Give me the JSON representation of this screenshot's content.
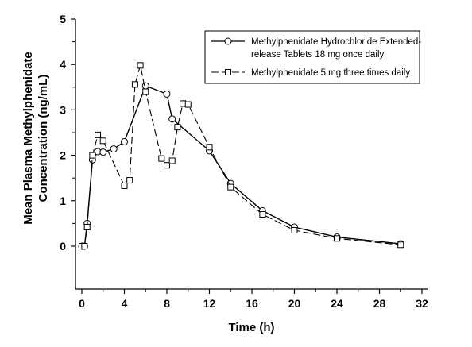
{
  "chart_data": {
    "type": "line",
    "xlabel": "Time (h)",
    "ylabel_lines": [
      "Mean Plasma Methylphenidate",
      "Concentration (ng/mL)"
    ],
    "xlim": [
      0,
      32
    ],
    "ylim": [
      0,
      5
    ],
    "x_ticks": [
      "0",
      "4",
      "8",
      "12",
      "16",
      "20",
      "24",
      "28",
      "32"
    ],
    "y_ticks": [
      "0",
      "1",
      "2",
      "3",
      "4",
      "5"
    ],
    "grid": false,
    "legend_position": "top-right",
    "series": [
      {
        "name_lines": [
          "Methylphenidate Hydrochloride Extended-",
          "release Tablets 18 mg once daily"
        ],
        "style": "solid",
        "marker": "circle",
        "color": "#000000",
        "x": [
          0,
          0.25,
          0.5,
          1,
          1.5,
          2,
          3,
          4,
          6,
          8,
          8.5,
          12,
          14,
          17,
          20,
          24,
          30
        ],
        "y": [
          0,
          0,
          0.5,
          1.9,
          2.08,
          2.07,
          2.14,
          2.3,
          3.53,
          3.35,
          2.8,
          2.1,
          1.38,
          0.78,
          0.42,
          0.2,
          0.05
        ]
      },
      {
        "name_lines": [
          "Methylphenidate 5 mg three times daily"
        ],
        "style": "dashed",
        "marker": "square",
        "color": "#000000",
        "x": [
          0,
          0.25,
          0.5,
          1,
          1.5,
          2,
          4,
          4.5,
          5,
          5.5,
          6,
          7.5,
          8,
          8.5,
          9,
          9.5,
          10,
          12,
          14,
          17,
          20,
          24,
          30
        ],
        "y": [
          0,
          0,
          0.42,
          2.0,
          2.45,
          2.32,
          1.33,
          1.45,
          3.56,
          3.98,
          3.4,
          1.93,
          1.78,
          1.88,
          2.62,
          3.14,
          3.12,
          2.18,
          1.3,
          0.7,
          0.35,
          0.17,
          0.03
        ]
      }
    ]
  }
}
